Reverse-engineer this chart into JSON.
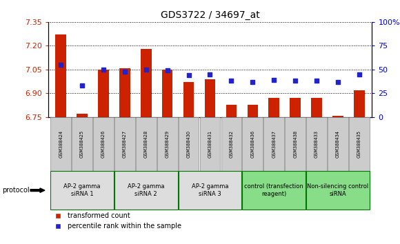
{
  "title": "GDS3722 / 34697_at",
  "samples": [
    "GSM388424",
    "GSM388425",
    "GSM388426",
    "GSM388427",
    "GSM388428",
    "GSM388429",
    "GSM388430",
    "GSM388431",
    "GSM388432",
    "GSM388436",
    "GSM388437",
    "GSM388438",
    "GSM388433",
    "GSM388434",
    "GSM388435"
  ],
  "transformed_count": [
    7.27,
    6.77,
    7.05,
    7.06,
    7.18,
    7.05,
    6.97,
    6.99,
    6.83,
    6.83,
    6.87,
    6.87,
    6.87,
    6.76,
    6.92
  ],
  "percentile_rank": [
    55,
    33,
    50,
    48,
    50,
    49,
    44,
    45,
    38,
    37,
    39,
    38,
    38,
    37,
    45
  ],
  "groups": [
    {
      "label": "AP-2 gamma\nsiRNA 1",
      "start": 0,
      "end": 3,
      "color": "#dddddd"
    },
    {
      "label": "AP-2 gamma\nsiRNA 2",
      "start": 3,
      "end": 6,
      "color": "#dddddd"
    },
    {
      "label": "AP-2 gamma\nsiRNA 3",
      "start": 6,
      "end": 9,
      "color": "#dddddd"
    },
    {
      "label": "control (transfection\nreagent)",
      "start": 9,
      "end": 12,
      "color": "#88dd88"
    },
    {
      "label": "Non-silencing control\nsiRNA",
      "start": 12,
      "end": 15,
      "color": "#88dd88"
    }
  ],
  "ylim_left": [
    6.75,
    7.35
  ],
  "yticks_left": [
    6.75,
    6.9,
    7.05,
    7.2,
    7.35
  ],
  "ylim_right": [
    0,
    100
  ],
  "yticks_right": [
    0,
    25,
    50,
    75,
    100
  ],
  "bar_color": "#cc2200",
  "dot_color": "#2222cc",
  "baseline": 6.75,
  "bar_width": 0.5,
  "left_tick_color": "#cc2200",
  "right_tick_color": "#0000cc",
  "group_border_color": "#007700",
  "sample_box_color": "#cccccc",
  "sample_box_edge": "#888888"
}
